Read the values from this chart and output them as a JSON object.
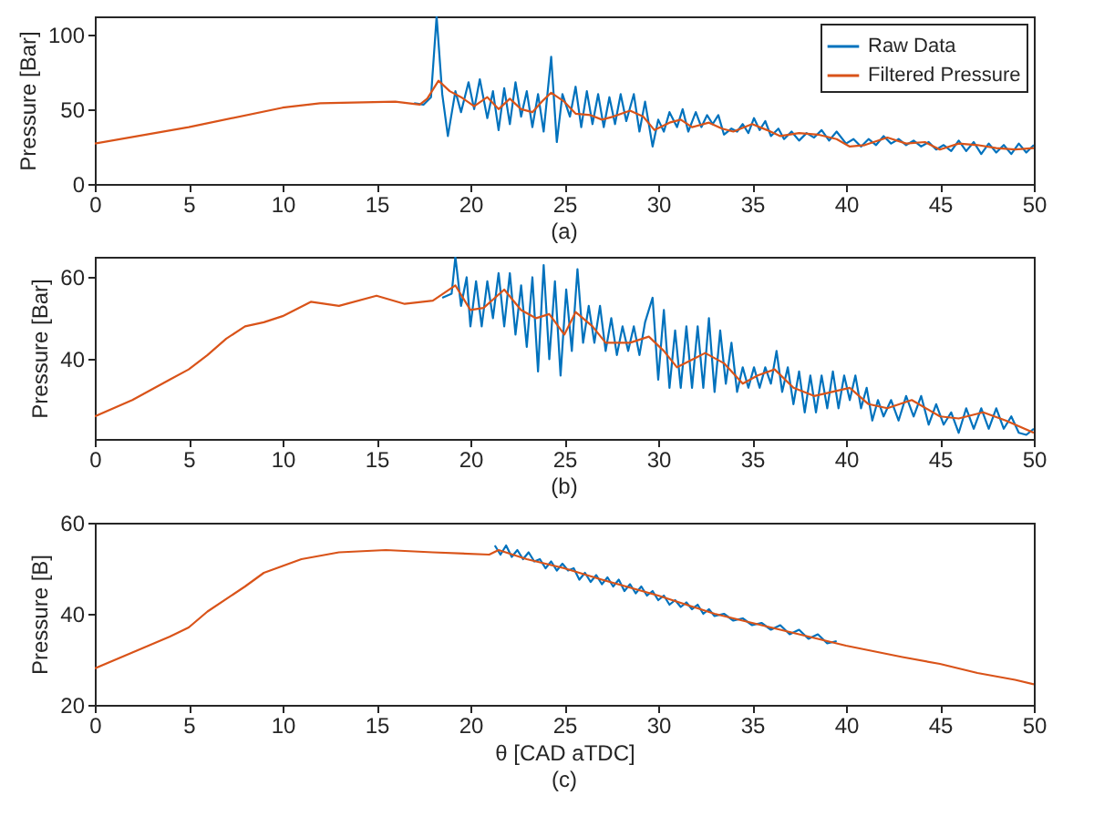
{
  "chart_data": [
    {
      "type": "line",
      "ylabel": "Pressure [Bar]",
      "annotations": [
        "(a)"
      ],
      "xlim": [
        0,
        50
      ],
      "xticks": [
        0,
        5,
        10,
        15,
        20,
        25,
        30,
        35,
        40,
        45,
        50
      ],
      "ylim": [
        0,
        112
      ],
      "yticks": [
        0,
        50,
        100
      ],
      "legend": "top right",
      "series": [
        {
          "name": "Raw Data",
          "color": "#0072bd",
          "x": [
            17,
            17.5,
            17.9,
            18.2,
            18.5,
            18.8,
            19.2,
            19.5,
            19.9,
            20.2,
            20.5,
            20.9,
            21.2,
            21.5,
            21.8,
            22.1,
            22.4,
            22.7,
            23.0,
            23.3,
            23.6,
            23.9,
            24.3,
            24.6,
            24.9,
            25.3,
            25.6,
            25.9,
            26.2,
            26.5,
            26.8,
            27.1,
            27.4,
            27.7,
            28.0,
            28.3,
            28.7,
            29.0,
            29.3,
            29.7,
            30.0,
            30.3,
            30.6,
            31.0,
            31.3,
            31.6,
            32.0,
            32.3,
            32.6,
            32.9,
            33.2,
            33.5,
            33.9,
            34.2,
            34.5,
            34.8,
            35.1,
            35.4,
            35.7,
            36.0,
            36.4,
            36.7,
            37.1,
            37.5,
            37.9,
            38.3,
            38.7,
            39.1,
            39.5,
            40.0,
            40.4,
            40.8,
            41.2,
            41.6,
            42.0,
            42.4,
            42.8,
            43.2,
            43.6,
            44.0,
            44.4,
            44.8,
            45.2,
            45.6,
            46.0,
            46.4,
            46.8,
            47.2,
            47.6,
            48.0,
            48.4,
            48.8,
            49.2,
            49.6,
            50
          ],
          "values": [
            54,
            53,
            58,
            112,
            60,
            32,
            62,
            48,
            68,
            50,
            70,
            44,
            62,
            36,
            64,
            40,
            68,
            45,
            62,
            38,
            60,
            35,
            85,
            28,
            60,
            45,
            65,
            38,
            62,
            40,
            60,
            38,
            58,
            40,
            60,
            42,
            60,
            35,
            55,
            25,
            43,
            35,
            48,
            38,
            50,
            35,
            48,
            38,
            46,
            40,
            46,
            33,
            37,
            35,
            40,
            34,
            44,
            36,
            42,
            32,
            37,
            30,
            35,
            29,
            34,
            31,
            36,
            29,
            35,
            27,
            30,
            25,
            30,
            26,
            32,
            27,
            30,
            26,
            29,
            25,
            28,
            23,
            26,
            22,
            29,
            22,
            28,
            20,
            27,
            21,
            26,
            20,
            27,
            21,
            26
          ]
        },
        {
          "name": "Filtered Pressure",
          "color": "#d95319",
          "x": [
            0,
            5,
            10,
            12,
            16,
            17.3,
            17.7,
            18.3,
            18.9,
            19.5,
            20.2,
            20.9,
            21.5,
            22.1,
            22.7,
            23.3,
            23.8,
            24.3,
            25.0,
            25.6,
            26.4,
            27.0,
            27.6,
            28.5,
            29.2,
            29.8,
            30.6,
            31.2,
            31.8,
            32.7,
            33.4,
            34.0,
            35.0,
            35.8,
            36.5,
            37.5,
            38.5,
            39.5,
            40.2,
            41,
            42.2,
            43.2,
            44.2,
            45,
            46,
            47,
            48,
            49,
            50
          ],
          "values": [
            27,
            38,
            51,
            54,
            55,
            53,
            57,
            69,
            62,
            58,
            52,
            58,
            50,
            57,
            50,
            48,
            55,
            61,
            55,
            47,
            46,
            43,
            45,
            49,
            45,
            36,
            41,
            43,
            38,
            41,
            37,
            35,
            40,
            36,
            32,
            34,
            33,
            30,
            25,
            26,
            31,
            27,
            28,
            23,
            27,
            26,
            24,
            23,
            24
          ]
        }
      ]
    },
    {
      "type": "line",
      "ylabel": "Pressure [Bar]",
      "annotations": [
        "(b)"
      ],
      "xlim": [
        0,
        50
      ],
      "xticks": [
        0,
        5,
        10,
        15,
        20,
        25,
        30,
        35,
        40,
        45,
        50
      ],
      "ylim": [
        20.5,
        65
      ],
      "yticks": [
        40,
        60
      ],
      "series": [
        {
          "color": "#0072bd",
          "x": [
            18.5,
            19,
            19.2,
            19.5,
            19.8,
            20.0,
            20.3,
            20.6,
            20.9,
            21.2,
            21.5,
            21.8,
            22.1,
            22.4,
            22.7,
            23.0,
            23.3,
            23.6,
            23.9,
            24.2,
            24.5,
            24.8,
            25.1,
            25.4,
            25.7,
            26.0,
            26.3,
            26.6,
            26.9,
            27.2,
            27.5,
            27.8,
            28.1,
            28.4,
            28.7,
            29.0,
            29.3,
            29.7,
            30.0,
            30.3,
            30.6,
            30.9,
            31.2,
            31.5,
            31.8,
            32.1,
            32.4,
            32.7,
            33.0,
            33.3,
            33.6,
            33.9,
            34.2,
            34.5,
            34.8,
            35.1,
            35.4,
            35.7,
            36.0,
            36.3,
            36.6,
            36.9,
            37.2,
            37.5,
            37.8,
            38.1,
            38.4,
            38.7,
            39.0,
            39.3,
            39.6,
            39.9,
            40.2,
            40.5,
            40.8,
            41.1,
            41.4,
            41.7,
            42.0,
            42.4,
            42.8,
            43.2,
            43.6,
            44.0,
            44.4,
            44.8,
            45.2,
            45.6,
            46.0,
            46.4,
            46.8,
            47.2,
            47.6,
            48.0,
            48.4,
            48.8,
            49.2,
            49.6,
            50
          ],
          "values": [
            55,
            56,
            65,
            53,
            60,
            48,
            59,
            48,
            59,
            50,
            61,
            48,
            61,
            46,
            58,
            43,
            60,
            37,
            63,
            40,
            59,
            36,
            57,
            42,
            62,
            44,
            53,
            44,
            53,
            42,
            50,
            41,
            48,
            42,
            48,
            41,
            49,
            55,
            35,
            52,
            33,
            47,
            33,
            48,
            33,
            48,
            33,
            50,
            32,
            47,
            34,
            44,
            32,
            38,
            33,
            38,
            33,
            38,
            34,
            42,
            32,
            38,
            29,
            37,
            27,
            36,
            27,
            36,
            28,
            37,
            28,
            36,
            30,
            36,
            28,
            33,
            25,
            30,
            26,
            30,
            25,
            31,
            26,
            31,
            24,
            29,
            24,
            27,
            22,
            28,
            23,
            28,
            23,
            28,
            23,
            26,
            22,
            21.5,
            23
          ]
        },
        {
          "color": "#d95319",
          "x": [
            0,
            2,
            4,
            5,
            6,
            7,
            8,
            9,
            10,
            11.5,
            13,
            15,
            16.5,
            18,
            19.2,
            20,
            20.7,
            21.8,
            22.7,
            23.5,
            24.2,
            25,
            25.6,
            26.5,
            27.2,
            28.5,
            29.5,
            30.3,
            31,
            32.5,
            33.5,
            34.5,
            35.3,
            36.2,
            37.2,
            38.3,
            40.2,
            41.2,
            42.2,
            43.5,
            45,
            46,
            47.3,
            48.5,
            50
          ],
          "values": [
            26,
            30,
            35,
            37.5,
            41,
            45,
            48,
            49,
            50.5,
            54,
            53,
            55.5,
            53.5,
            54.3,
            58,
            52,
            52.5,
            57,
            52,
            50,
            51,
            46,
            51.5,
            48,
            44,
            44,
            45.5,
            42,
            38,
            41.5,
            39,
            34,
            36,
            37.5,
            33,
            31,
            33,
            29,
            28,
            30,
            26,
            25.5,
            27,
            25,
            22
          ]
        }
      ]
    },
    {
      "type": "line",
      "xlabel": "θ [CAD aTDC]",
      "ylabel": "Pressure [B]",
      "annotations": [
        "(c)"
      ],
      "xlim": [
        0,
        50
      ],
      "xticks": [
        0,
        5,
        10,
        15,
        20,
        25,
        30,
        35,
        40,
        45,
        50
      ],
      "ylim": [
        20,
        60
      ],
      "yticks": [
        20,
        40,
        60
      ],
      "series": [
        {
          "color": "#0072bd",
          "x": [
            21.3,
            21.6,
            21.9,
            22.2,
            22.5,
            22.8,
            23.1,
            23.4,
            23.7,
            24,
            24.3,
            24.6,
            24.9,
            25.2,
            25.5,
            25.8,
            26.1,
            26.4,
            26.7,
            27,
            27.3,
            27.6,
            27.9,
            28.2,
            28.5,
            28.8,
            29.1,
            29.4,
            29.7,
            30,
            30.3,
            30.6,
            30.9,
            31.2,
            31.5,
            31.8,
            32.1,
            32.4,
            32.7,
            33,
            33.5,
            34,
            34.5,
            35,
            35.5,
            36,
            36.5,
            37,
            37.5,
            38,
            38.5,
            39,
            39.5
          ],
          "values": [
            55,
            53,
            55,
            52.5,
            54,
            52,
            53.5,
            51.5,
            52,
            50,
            51.5,
            49.5,
            51,
            49.5,
            50,
            47.5,
            49,
            47,
            48.5,
            46.5,
            48,
            46,
            47.5,
            45,
            46.5,
            44.5,
            46,
            44,
            45,
            43,
            44,
            42,
            43,
            41.5,
            42.5,
            41,
            42,
            40,
            41,
            39.5,
            40,
            38.5,
            39,
            37.5,
            38,
            36.5,
            37.5,
            35.5,
            36.5,
            34.5,
            35.5,
            33.5,
            34
          ]
        },
        {
          "color": "#d95319",
          "x": [
            0,
            2,
            4,
            5,
            6,
            8,
            9,
            10,
            11,
            13,
            15.5,
            18,
            21,
            21.5,
            23,
            25,
            27,
            30,
            33,
            36,
            40,
            43,
            45,
            47,
            49,
            50
          ],
          "values": [
            28,
            31.5,
            35,
            37,
            40.5,
            46,
            49,
            50.5,
            52,
            53.5,
            54,
            53.5,
            53,
            54,
            52,
            50,
            47.5,
            44,
            40,
            37,
            33,
            30.5,
            29,
            27,
            25.5,
            24.5
          ]
        }
      ]
    }
  ]
}
